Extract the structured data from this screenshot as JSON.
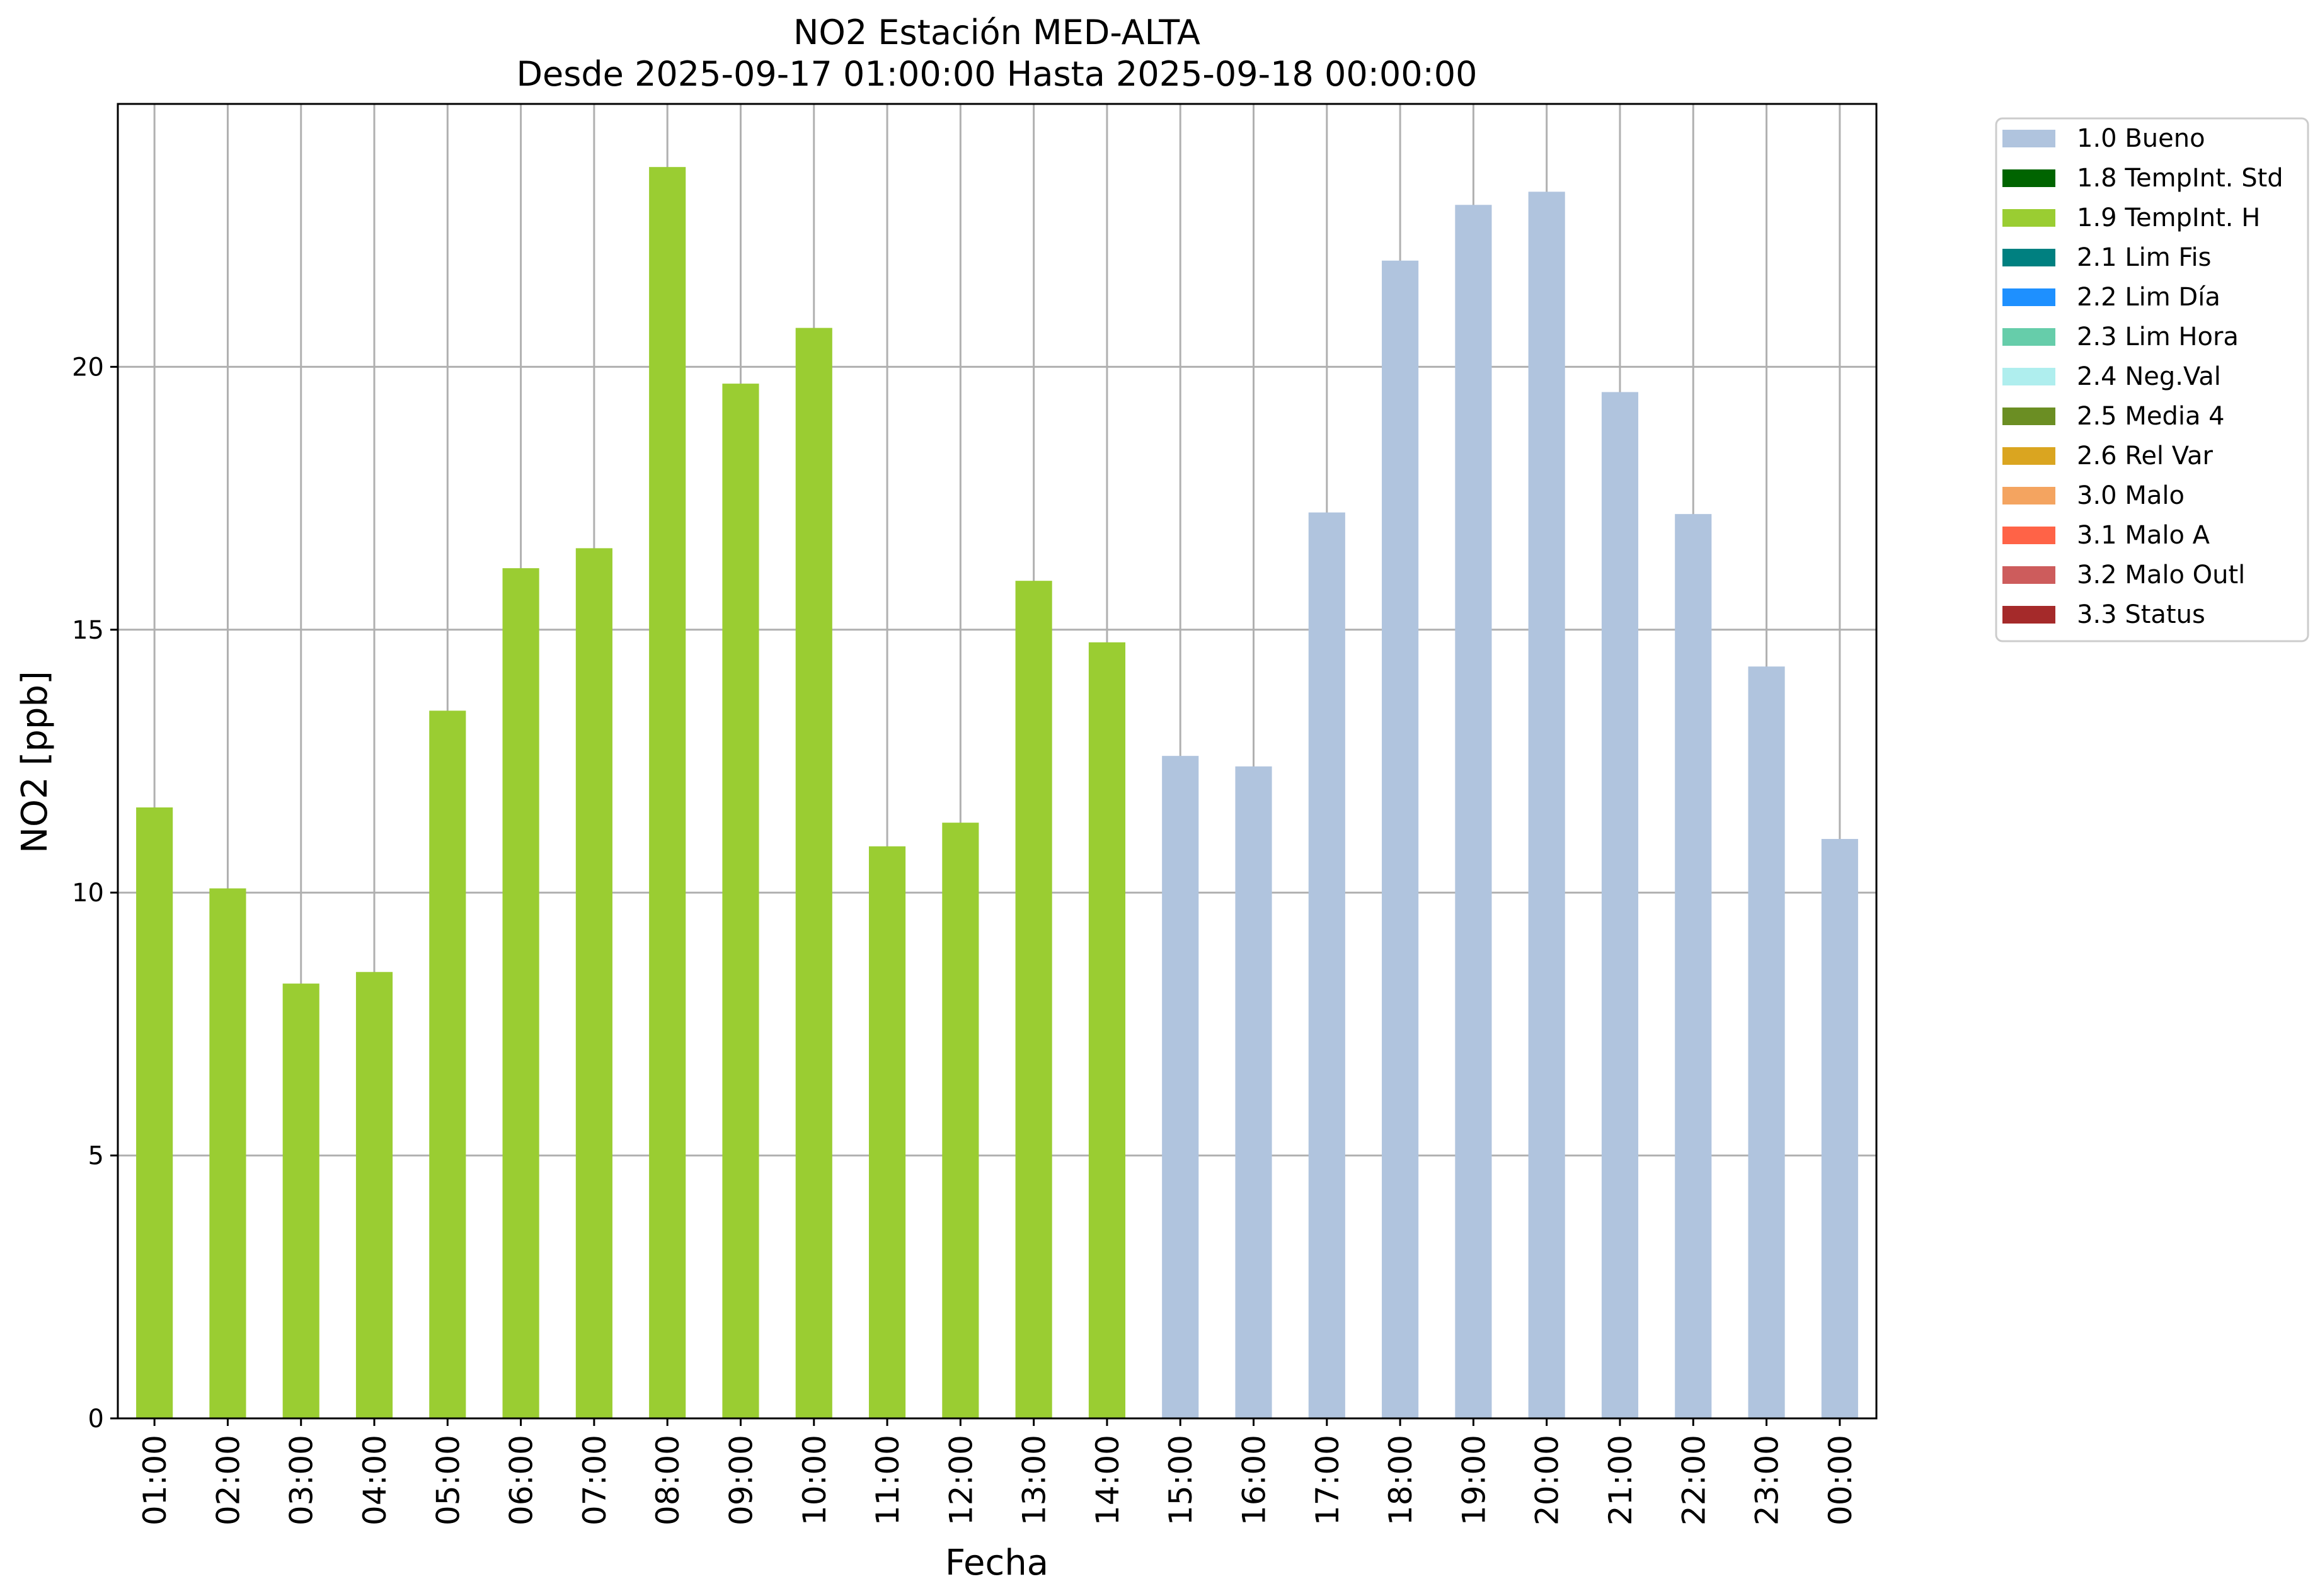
{
  "chart_data": {
    "type": "bar",
    "title_line1": "NO2 Estación MED-ALTA",
    "title_line2": "Desde 2025-09-17 01:00:00 Hasta 2025-09-18 00:00:00",
    "xlabel": "Fecha",
    "ylabel": "NO2 [ppb]",
    "ylim": [
      0,
      25
    ],
    "yticks": [
      0,
      5,
      10,
      15,
      20
    ],
    "grid": true,
    "legend_position": "outside-top-right",
    "categories": [
      "01:00",
      "02:00",
      "03:00",
      "04:00",
      "05:00",
      "06:00",
      "07:00",
      "08:00",
      "09:00",
      "10:00",
      "11:00",
      "12:00",
      "13:00",
      "14:00",
      "15:00",
      "16:00",
      "17:00",
      "18:00",
      "19:00",
      "20:00",
      "21:00",
      "22:00",
      "23:00",
      "00:00"
    ],
    "values": [
      11.62,
      10.08,
      8.27,
      8.49,
      13.46,
      16.17,
      16.55,
      23.8,
      19.68,
      20.74,
      10.88,
      11.33,
      15.93,
      14.76,
      12.6,
      12.4,
      17.23,
      22.02,
      23.08,
      23.33,
      19.52,
      17.2,
      14.3,
      11.02
    ],
    "quality_flags": [
      "1.9 TempInt. H",
      "1.9 TempInt. H",
      "1.9 TempInt. H",
      "1.9 TempInt. H",
      "1.9 TempInt. H",
      "1.9 TempInt. H",
      "1.9 TempInt. H",
      "1.9 TempInt. H",
      "1.9 TempInt. H",
      "1.9 TempInt. H",
      "1.9 TempInt. H",
      "1.9 TempInt. H",
      "1.9 TempInt. H",
      "1.9 TempInt. H",
      "1.0 Bueno",
      "1.0 Bueno",
      "1.0 Bueno",
      "1.0 Bueno",
      "1.0 Bueno",
      "1.0 Bueno",
      "1.0 Bueno",
      "1.0 Bueno",
      "1.0 Bueno",
      "1.0 Bueno"
    ],
    "legend": [
      {
        "label": "1.0 Bueno",
        "color": "#b0c4de"
      },
      {
        "label": "1.8 TempInt. Std",
        "color": "#006400"
      },
      {
        "label": "1.9 TempInt. H",
        "color": "#9acd32"
      },
      {
        "label": "2.1 Lim Fis",
        "color": "#008080"
      },
      {
        "label": "2.2 Lim Día",
        "color": "#1e90ff"
      },
      {
        "label": "2.3 Lim Hora",
        "color": "#66cdaa"
      },
      {
        "label": "2.4 Neg.Val",
        "color": "#afeeee"
      },
      {
        "label": "2.5 Media 4",
        "color": "#6b8e23"
      },
      {
        "label": "2.6 Rel Var",
        "color": "#daa520"
      },
      {
        "label": "3.0 Malo",
        "color": "#f4a460"
      },
      {
        "label": "3.1 Malo A",
        "color": "#ff6347"
      },
      {
        "label": "3.2 Malo Outl",
        "color": "#cd5c5c"
      },
      {
        "label": "3.3 Status",
        "color": "#a52a2a"
      }
    ]
  }
}
